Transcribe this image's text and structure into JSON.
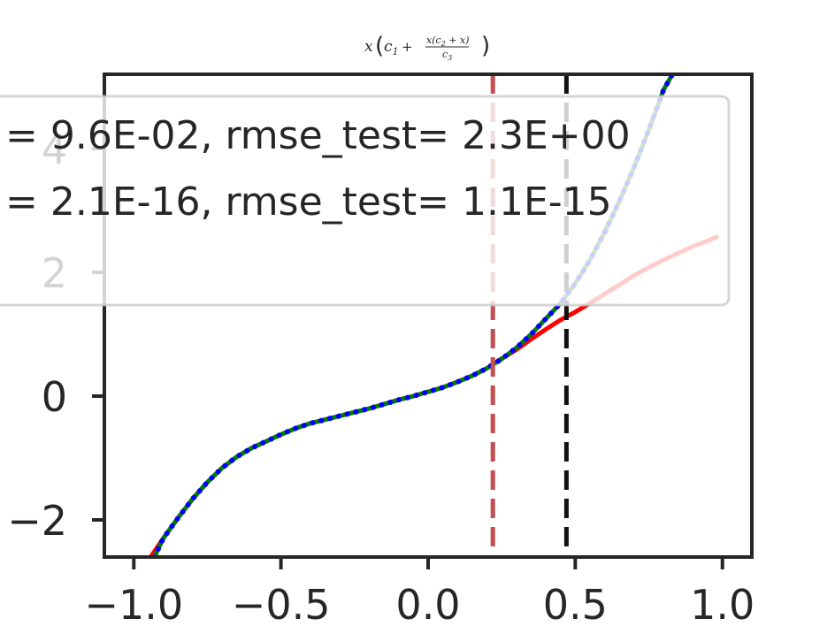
{
  "chart_data": {
    "type": "line",
    "title": {
      "prefix": "x",
      "c1": "c",
      "c1_sub": "1",
      "plus": " + ",
      "num": "x(c",
      "num_sub": "2",
      "num_tail": " + x)",
      "den": "c",
      "den_sub": "3"
    },
    "xlabel": "",
    "ylabel": "",
    "xlim": [
      -1.1,
      1.1
    ],
    "ylim": [
      -2.6,
      5.2
    ],
    "xticks": [
      -1.0,
      -0.5,
      0.0,
      0.5,
      1.0
    ],
    "xtick_labels": [
      "−1.0",
      "−0.5",
      "0.0",
      "0.5",
      "1.0"
    ],
    "yticks": [
      -2,
      0,
      2,
      4
    ],
    "ytick_labels": [
      "−2",
      "0",
      "2",
      "4"
    ],
    "vlines": [
      {
        "x": 0.22,
        "color": "#c44e52",
        "style": "dashed"
      },
      {
        "x": 0.47,
        "color": "#111111",
        "style": "dashed"
      }
    ],
    "legend": {
      "placement": "top-left",
      "entries": [
        "= 9.6E-02, rmse_test= 2.3E+00",
        "= 2.1E-16, rmse_test= 1.1E-15"
      ]
    },
    "series": [
      {
        "style": "solid",
        "color": "#ff0000",
        "x": [
          -0.95,
          -0.9,
          -0.85,
          -0.8,
          -0.75,
          -0.7,
          -0.65,
          -0.6,
          -0.55,
          -0.5,
          -0.45,
          -0.4,
          -0.35,
          -0.3,
          -0.25,
          -0.2,
          -0.15,
          -0.1,
          -0.05,
          0.0,
          0.05,
          0.1,
          0.15,
          0.2,
          0.22,
          0.3,
          0.35,
          0.4,
          0.45,
          0.5,
          0.55,
          0.6,
          0.65,
          0.7,
          0.75,
          0.8,
          0.85,
          0.9,
          0.95,
          0.98
        ],
        "y": [
          -2.65,
          -2.3,
          -1.97,
          -1.66,
          -1.39,
          -1.16,
          -0.98,
          -0.84,
          -0.73,
          -0.62,
          -0.52,
          -0.44,
          -0.38,
          -0.32,
          -0.26,
          -0.2,
          -0.13,
          -0.06,
          0.0,
          0.07,
          0.14,
          0.23,
          0.33,
          0.45,
          0.52,
          0.75,
          0.92,
          1.08,
          1.23,
          1.36,
          1.5,
          1.65,
          1.8,
          1.95,
          2.08,
          2.2,
          2.31,
          2.42,
          2.51,
          2.57
        ]
      },
      {
        "style": "solid",
        "color": "#008000",
        "x": [
          -0.93,
          -0.9,
          -0.85,
          -0.8,
          -0.75,
          -0.7,
          -0.65,
          -0.6,
          -0.55,
          -0.5,
          -0.45,
          -0.4,
          -0.35,
          -0.3,
          -0.25,
          -0.2,
          -0.15,
          -0.1,
          -0.05,
          0.0,
          0.05,
          0.1,
          0.15,
          0.2,
          0.25,
          0.3,
          0.35,
          0.4,
          0.45,
          0.5,
          0.55,
          0.6,
          0.65,
          0.7,
          0.75,
          0.8,
          0.83
        ],
        "y": [
          -2.6,
          -2.3,
          -1.97,
          -1.66,
          -1.39,
          -1.16,
          -0.98,
          -0.84,
          -0.73,
          -0.62,
          -0.52,
          -0.44,
          -0.38,
          -0.32,
          -0.26,
          -0.2,
          -0.13,
          -0.06,
          0.0,
          0.07,
          0.14,
          0.23,
          0.33,
          0.45,
          0.6,
          0.78,
          1.0,
          1.25,
          1.5,
          1.82,
          2.2,
          2.65,
          3.15,
          3.7,
          4.3,
          4.95,
          5.2
        ]
      },
      {
        "style": "dotted",
        "color": "#0000ff",
        "x": [
          -0.93,
          -0.9,
          -0.85,
          -0.8,
          -0.75,
          -0.7,
          -0.65,
          -0.6,
          -0.55,
          -0.5,
          -0.45,
          -0.4,
          -0.35,
          -0.3,
          -0.25,
          -0.2,
          -0.15,
          -0.1,
          -0.05,
          0.0,
          0.05,
          0.1,
          0.15,
          0.2,
          0.25,
          0.3,
          0.35,
          0.4,
          0.45,
          0.5,
          0.55,
          0.6,
          0.65,
          0.7,
          0.75,
          0.8,
          0.83
        ],
        "y": [
          -2.6,
          -2.3,
          -1.97,
          -1.66,
          -1.39,
          -1.16,
          -0.98,
          -0.84,
          -0.73,
          -0.62,
          -0.52,
          -0.44,
          -0.38,
          -0.32,
          -0.26,
          -0.2,
          -0.13,
          -0.06,
          0.0,
          0.07,
          0.14,
          0.23,
          0.33,
          0.45,
          0.6,
          0.78,
          1.0,
          1.25,
          1.5,
          1.82,
          2.2,
          2.65,
          3.15,
          3.7,
          4.3,
          4.95,
          5.2
        ]
      }
    ]
  }
}
